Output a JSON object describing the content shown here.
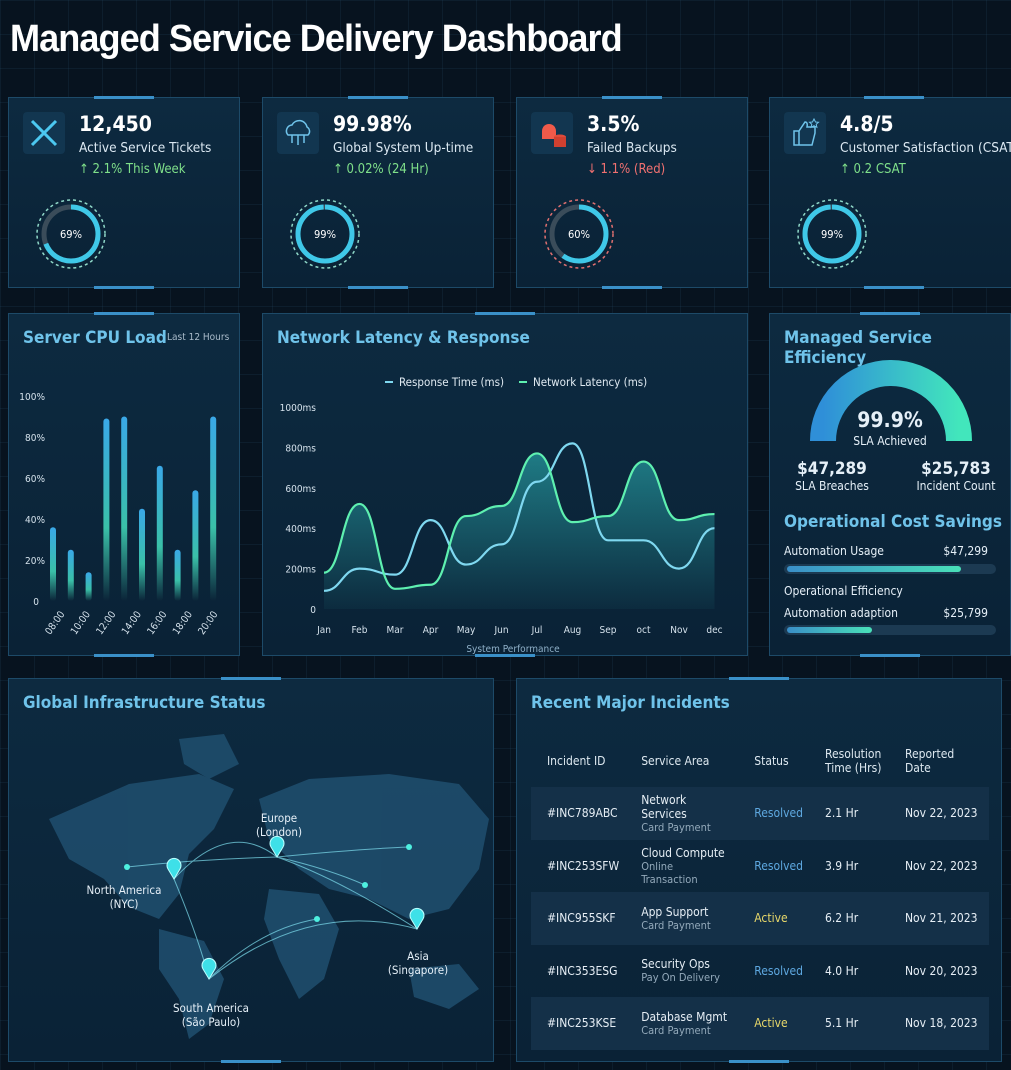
{
  "title": "Managed Service Delivery Dashboard",
  "kpis": [
    {
      "icon": "tools-icon",
      "value": "12,450",
      "label": "Active Service Tickets",
      "change": "↑ 2.1% This Week",
      "trend": "up",
      "ring": 69,
      "ring_label": "69%",
      "color": "#3fc8e8"
    },
    {
      "icon": "cloud-network-icon",
      "value": "99.98%",
      "label": "Global System Up-time",
      "change": "↑ 0.02% (24 Hr)",
      "trend": "up",
      "ring": 99,
      "ring_label": "99%",
      "color": "#3fc8e8"
    },
    {
      "icon": "alarm-database-icon",
      "value": "3.5%",
      "label": "Failed Backups",
      "change": "↓ 1.1% (Red)",
      "trend": "down",
      "ring": 60,
      "ring_label": "60%",
      "color": "#3fc8e8"
    },
    {
      "icon": "thumbs-up-star-icon",
      "value": "4.8/5",
      "label": "Customer Satisfaction (CSAT)",
      "change": "↑ 0.2 CSAT",
      "trend": "up",
      "ring": 99,
      "ring_label": "99%",
      "color": "#3fc8e8"
    }
  ],
  "colors": {
    "up": "#7fe08a",
    "down": "#f07070",
    "accent": "#6fc3ea",
    "resolved": "#5ea8e0",
    "active": "#e8d86a"
  },
  "chart_data": [
    {
      "type": "bar",
      "title": "Server CPU Load",
      "subtitle": "Last 12 Hours",
      "ylim": [
        0,
        100
      ],
      "yticks": [
        "0",
        "20%",
        "40%",
        "60%",
        "80%",
        "100%"
      ],
      "xticks": [
        "08:00",
        "10:00",
        "12:00",
        "14:00",
        "16:00",
        "18:00",
        "20:00"
      ],
      "values": [
        36,
        25,
        14,
        89,
        90,
        45,
        66,
        25,
        54,
        90
      ]
    },
    {
      "type": "area",
      "title": "Network Latency & Response",
      "xlabel": "System Performance",
      "ylim": [
        0,
        1000
      ],
      "yticks": [
        "0",
        "200ms",
        "400ms",
        "600ms",
        "800ms",
        "1000ms"
      ],
      "categories": [
        "Jan",
        "Feb",
        "Mar",
        "Apr",
        "May",
        "Jun",
        "Jul",
        "Aug",
        "Sep",
        "oct",
        "Nov",
        "dec"
      ],
      "series": [
        {
          "name": "Response Time (ms)",
          "color": "#7fd8f0",
          "values": [
            90,
            200,
            170,
            440,
            220,
            320,
            630,
            820,
            340,
            340,
            200,
            400
          ]
        },
        {
          "name": "Network Latency (ms)",
          "color": "#5ef0b0",
          "values": [
            180,
            520,
            100,
            120,
            460,
            510,
            770,
            430,
            460,
            730,
            440,
            470
          ]
        }
      ]
    }
  ],
  "efficiency": {
    "title": "Managed Service Efficiency",
    "gauge_value": 99.9,
    "gauge_label": "99.9%",
    "gauge_caption": "SLA Achieved",
    "stats": [
      {
        "value": "$47,289",
        "label": "SLA Breaches"
      },
      {
        "value": "$25,783",
        "label": "Incident Count"
      }
    ],
    "savings_title": "Operational Cost Savings",
    "bars": [
      {
        "label": "Automation Usage",
        "value": "$47,299",
        "fill": 0.82
      },
      {
        "group": "Operational Efficiency",
        "label": "Automation adaption",
        "value": "$25,799",
        "fill": 0.4
      }
    ]
  },
  "map": {
    "title": "Global Infrastructure Status",
    "locations": [
      {
        "name": "North America",
        "city": "(NYC)"
      },
      {
        "name": "Europe",
        "city": "(London)"
      },
      {
        "name": "Asia",
        "city": "(Singapore)"
      },
      {
        "name": "South America",
        "city": "(São Paulo)"
      }
    ]
  },
  "incidents": {
    "title": "Recent Major Incidents",
    "headers": [
      "Incident ID",
      "Service Area",
      "Status",
      "Resolution Time (Hrs)",
      "Reported Date"
    ],
    "rows": [
      {
        "id": "#INC789ABC",
        "area": "Network Services",
        "sub": "Card Payment",
        "status": "Resolved",
        "time": "2.1 Hr",
        "date": "Nov 22, 2023"
      },
      {
        "id": "#INC253SFW",
        "area": "Cloud Compute",
        "sub": "Online Transaction",
        "status": "Resolved",
        "time": "3.9 Hr",
        "date": "Nov 22, 2023"
      },
      {
        "id": "#INC955SKF",
        "area": "App Support",
        "sub": "Card Payment",
        "status": "Active",
        "time": "6.2 Hr",
        "date": "Nov 21, 2023"
      },
      {
        "id": "#INC353ESG",
        "area": "Security Ops",
        "sub": "Pay On Delivery",
        "status": "Resolved",
        "time": "4.0 Hr",
        "date": "Nov 20, 2023"
      },
      {
        "id": "#INC253KSE",
        "area": "Database Mgmt",
        "sub": "Card Payment",
        "status": "Active",
        "time": "5.1 Hr",
        "date": "Nov 18, 2023"
      }
    ]
  }
}
